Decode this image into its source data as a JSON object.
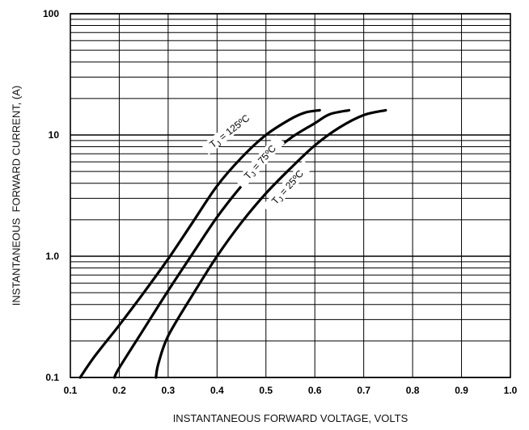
{
  "chart_data": {
    "type": "line",
    "xlabel": "INSTANTANEOUS FORWARD VOLTAGE, VOLTS",
    "ylabel": "INSTANTANEOUS  FORWARD CURRENT, (A)",
    "xlim": [
      0.1,
      1.0
    ],
    "ylim": [
      0.1,
      100
    ],
    "yscale": "log",
    "grid": true,
    "x_ticks": [
      {
        "v": 0.1,
        "label": "0.1"
      },
      {
        "v": 0.2,
        "label": "0.2"
      },
      {
        "v": 0.3,
        "label": "0.3"
      },
      {
        "v": 0.4,
        "label": "0.4"
      },
      {
        "v": 0.5,
        "label": "0.5"
      },
      {
        "v": 0.6,
        "label": "0.6"
      },
      {
        "v": 0.7,
        "label": "0.7"
      },
      {
        "v": 0.8,
        "label": "0.8"
      },
      {
        "v": 0.9,
        "label": "0.9"
      },
      {
        "v": 1.0,
        "label": "1.0"
      }
    ],
    "y_ticks": [
      {
        "v": 0.1,
        "label": "0.1"
      },
      {
        "v": 1,
        "label": "1.0"
      },
      {
        "v": 10,
        "label": "10"
      },
      {
        "v": 100,
        "label": "100"
      }
    ],
    "series": [
      {
        "name": "TJ = 125ºC",
        "label": {
          "sub": "J",
          "text": " = 125ºC"
        },
        "points": [
          [
            0.12,
            0.1
          ],
          [
            0.15,
            0.15
          ],
          [
            0.2,
            0.27
          ],
          [
            0.25,
            0.5
          ],
          [
            0.3,
            0.95
          ],
          [
            0.35,
            1.9
          ],
          [
            0.4,
            3.8
          ],
          [
            0.45,
            6.5
          ],
          [
            0.5,
            10
          ],
          [
            0.55,
            13.5
          ],
          [
            0.58,
            15.3
          ],
          [
            0.61,
            16
          ]
        ]
      },
      {
        "name": "TJ = 75ºC",
        "label": {
          "sub": "J",
          "text": " = 75ºC"
        },
        "points": [
          [
            0.19,
            0.1
          ],
          [
            0.2,
            0.12
          ],
          [
            0.25,
            0.25
          ],
          [
            0.3,
            0.52
          ],
          [
            0.35,
            1.05
          ],
          [
            0.4,
            2.1
          ],
          [
            0.45,
            3.8
          ],
          [
            0.5,
            6.4
          ],
          [
            0.55,
            9.4
          ],
          [
            0.6,
            12.5
          ],
          [
            0.63,
            14.8
          ],
          [
            0.67,
            16
          ]
        ]
      },
      {
        "name": "TJ = 25ºC",
        "label": {
          "sub": "J",
          "text": " = 25ºC"
        },
        "points": [
          [
            0.275,
            0.1
          ],
          [
            0.28,
            0.13
          ],
          [
            0.3,
            0.22
          ],
          [
            0.35,
            0.48
          ],
          [
            0.4,
            1.0
          ],
          [
            0.45,
            1.9
          ],
          [
            0.5,
            3.3
          ],
          [
            0.55,
            5.3
          ],
          [
            0.6,
            8.2
          ],
          [
            0.65,
            11.5
          ],
          [
            0.7,
            14.6
          ],
          [
            0.745,
            16
          ]
        ]
      }
    ]
  }
}
